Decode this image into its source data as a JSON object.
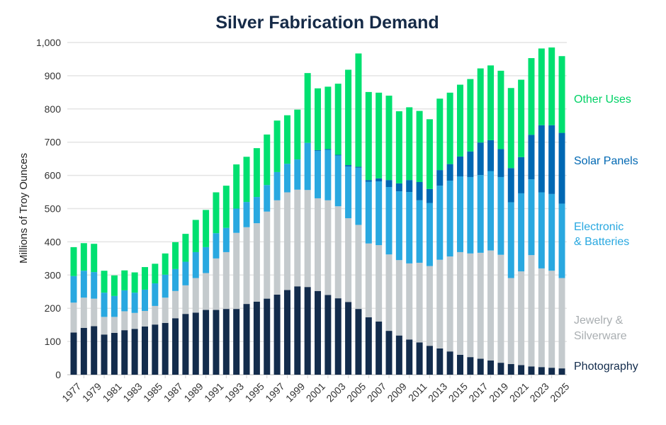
{
  "chart_data": {
    "type": "bar",
    "stacked": true,
    "title": "Silver Fabrication Demand",
    "xlabel": "",
    "ylabel": "Millions of Troy Ounces",
    "ylim": [
      0,
      1000
    ],
    "yticks": [
      "0",
      "100",
      "200",
      "300",
      "400",
      "500",
      "600",
      "700",
      "800",
      "900",
      "1,000"
    ],
    "grid": true,
    "legend_placement": "right",
    "categories": [
      "1977",
      "1978",
      "1979",
      "1980",
      "1981",
      "1982",
      "1983",
      "1984",
      "1985",
      "1986",
      "1987",
      "1988",
      "1989",
      "1990",
      "1991",
      "1992",
      "1993",
      "1994",
      "1995",
      "1996",
      "1997",
      "1998",
      "1999",
      "2000",
      "2001",
      "2002",
      "2003",
      "2004",
      "2005",
      "2006",
      "2007",
      "2008",
      "2009",
      "2010",
      "2011",
      "2012",
      "2013",
      "2014",
      "2015",
      "2016",
      "2017",
      "2018",
      "2019",
      "2020",
      "2021",
      "2022",
      "2023",
      "2024",
      "2025"
    ],
    "series": [
      {
        "name": "Photography",
        "color": "#132c4c",
        "label_lines": [
          "Photography"
        ],
        "values": [
          127,
          141,
          146,
          121,
          126,
          134,
          138,
          145,
          151,
          156,
          170,
          183,
          187,
          195,
          195,
          198,
          198,
          213,
          220,
          229,
          241,
          255,
          266,
          264,
          252,
          240,
          230,
          219,
          198,
          173,
          160,
          132,
          118,
          106,
          97,
          87,
          79,
          70,
          60,
          53,
          48,
          43,
          36,
          32,
          29,
          25,
          23,
          21,
          19
        ]
      },
      {
        "name": "Jewelry & Silverware",
        "color": "#c4cacd",
        "label_color": "#a9aeb1",
        "label_lines": [
          "Jewelry &",
          "Silverware"
        ],
        "values": [
          90,
          91,
          83,
          53,
          48,
          57,
          48,
          47,
          56,
          76,
          82,
          86,
          104,
          111,
          155,
          171,
          229,
          231,
          236,
          262,
          284,
          294,
          291,
          292,
          279,
          285,
          277,
          252,
          253,
          222,
          230,
          230,
          227,
          229,
          240,
          240,
          267,
          286,
          309,
          312,
          319,
          331,
          325,
          259,
          282,
          335,
          297,
          292,
          272
        ]
      },
      {
        "name": "Electronic & Batteries",
        "color": "#29a8e0",
        "label_lines": [
          "Electronic",
          "& Batteries"
        ],
        "values": [
          80,
          81,
          80,
          73,
          63,
          63,
          61,
          64,
          68,
          69,
          66,
          71,
          78,
          78,
          76,
          73,
          73,
          76,
          79,
          80,
          85,
          86,
          91,
          142,
          143,
          152,
          153,
          156,
          172,
          186,
          192,
          203,
          207,
          215,
          188,
          190,
          223,
          228,
          228,
          230,
          234,
          239,
          234,
          228,
          235,
          228,
          229,
          231,
          224
        ]
      },
      {
        "name": "Solar Panels",
        "color": "#0068b3",
        "label_lines": [
          "Solar Panels"
        ],
        "values": [
          0,
          0,
          0,
          0,
          0,
          0,
          0,
          0,
          0,
          0,
          0,
          0,
          0,
          0,
          0,
          0,
          0,
          0,
          0,
          0,
          0,
          0,
          0,
          0,
          2,
          2,
          2,
          4,
          3,
          5,
          9,
          21,
          24,
          36,
          55,
          42,
          47,
          50,
          60,
          77,
          98,
          93,
          84,
          103,
          109,
          134,
          202,
          207,
          213
        ]
      },
      {
        "name": "Other Uses",
        "color": "#00e070",
        "label_color": "#00d266",
        "label_lines": [
          "Other Uses"
        ],
        "values": [
          87,
          83,
          85,
          66,
          62,
          60,
          61,
          68,
          59,
          64,
          81,
          84,
          97,
          112,
          123,
          127,
          133,
          136,
          147,
          152,
          155,
          146,
          150,
          210,
          186,
          188,
          214,
          287,
          341,
          265,
          258,
          254,
          217,
          219,
          214,
          210,
          215,
          215,
          216,
          218,
          223,
          225,
          236,
          241,
          233,
          231,
          231,
          234,
          231
        ]
      }
    ]
  }
}
